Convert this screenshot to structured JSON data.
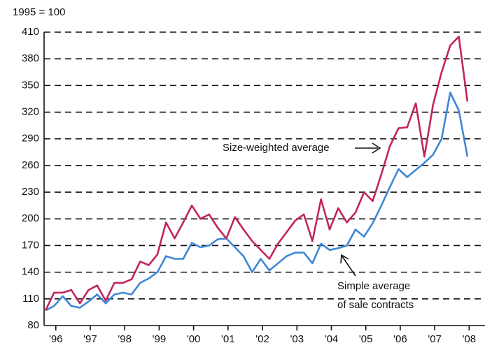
{
  "chart_data": {
    "type": "line",
    "subtitle": "1995 = 100",
    "annotations": [
      "Size-weighted average",
      "Simple average",
      "of sale contracts"
    ],
    "x": [
      1996,
      1996.25,
      1996.5,
      1996.75,
      1997,
      1997.25,
      1997.5,
      1997.75,
      1998,
      1998.25,
      1998.5,
      1998.75,
      1999,
      1999.25,
      1999.5,
      1999.75,
      2000,
      2000.25,
      2000.5,
      2000.75,
      2001,
      2001.25,
      2001.5,
      2001.75,
      2002,
      2002.25,
      2002.5,
      2002.75,
      2003,
      2003.25,
      2003.5,
      2003.75,
      2004,
      2004.25,
      2004.5,
      2004.75,
      2005,
      2005.25,
      2005.5,
      2005.75,
      2006,
      2006.25,
      2006.5,
      2006.75,
      2007,
      2007.25,
      2007.5,
      2007.75,
      2008,
      2008.25
    ],
    "series": [
      {
        "name": "Size-weighted average",
        "color": "#c2245f",
        "values": [
          97,
          117,
          117,
          120,
          105,
          120,
          125,
          108,
          128,
          128,
          132,
          152,
          148,
          160,
          196,
          178,
          196,
          215,
          200,
          205,
          190,
          178,
          202,
          188,
          175,
          165,
          155,
          172,
          185,
          198,
          205,
          175,
          222,
          188,
          212,
          196,
          207,
          230,
          220,
          250,
          282,
          302,
          303,
          330,
          270,
          328,
          365,
          395,
          405,
          332
        ]
      },
      {
        "name": "Simple average of sale contracts",
        "color": "#3f87d6",
        "values": [
          97,
          102,
          113,
          102,
          100,
          107,
          115,
          105,
          115,
          117,
          115,
          128,
          133,
          140,
          158,
          155,
          155,
          173,
          168,
          170,
          177,
          178,
          168,
          158,
          140,
          155,
          142,
          150,
          158,
          162,
          162,
          150,
          172,
          165,
          167,
          170,
          188,
          180,
          195,
          215,
          236,
          256,
          247,
          255,
          263,
          272,
          290,
          342,
          322,
          270
        ]
      }
    ],
    "xlim": [
      1995.96,
      2008.76
    ],
    "xticks": [
      {
        "value": 1996.3,
        "label": "'96"
      },
      {
        "value": 1997.3,
        "label": "'97"
      },
      {
        "value": 1998.3,
        "label": "'98"
      },
      {
        "value": 1999.3,
        "label": "'99"
      },
      {
        "value": 2000.3,
        "label": "'00"
      },
      {
        "value": 2001.3,
        "label": "'01"
      },
      {
        "value": 2002.3,
        "label": "'02"
      },
      {
        "value": 2003.3,
        "label": "'03"
      },
      {
        "value": 2004.3,
        "label": "'04"
      },
      {
        "value": 2005.3,
        "label": "'05"
      },
      {
        "value": 2006.3,
        "label": "'06"
      },
      {
        "value": 2007.3,
        "label": "'07"
      },
      {
        "value": 2008.3,
        "label": "'08"
      }
    ],
    "ylim": [
      80,
      410
    ],
    "yticks": [
      80,
      110,
      140,
      170,
      200,
      230,
      260,
      290,
      320,
      350,
      380,
      410
    ],
    "grid": true
  }
}
